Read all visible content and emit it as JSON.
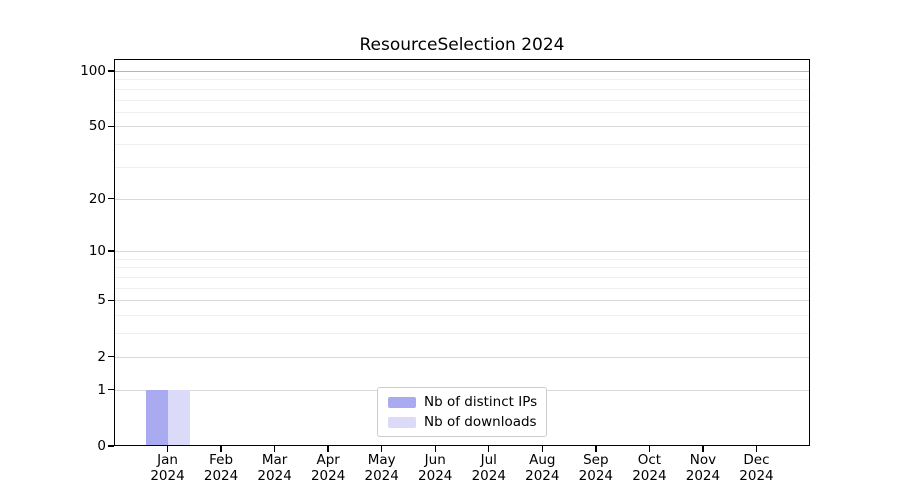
{
  "chart_data": {
    "type": "bar",
    "title": "ResourceSelection 2024",
    "categories": [
      {
        "month": "Jan",
        "year": "2024"
      },
      {
        "month": "Feb",
        "year": "2024"
      },
      {
        "month": "Mar",
        "year": "2024"
      },
      {
        "month": "Apr",
        "year": "2024"
      },
      {
        "month": "May",
        "year": "2024"
      },
      {
        "month": "Jun",
        "year": "2024"
      },
      {
        "month": "Jul",
        "year": "2024"
      },
      {
        "month": "Aug",
        "year": "2024"
      },
      {
        "month": "Sep",
        "year": "2024"
      },
      {
        "month": "Oct",
        "year": "2024"
      },
      {
        "month": "Nov",
        "year": "2024"
      },
      {
        "month": "Dec",
        "year": "2024"
      }
    ],
    "series": [
      {
        "name": "Nb of distinct IPs",
        "color": "#aaaaf0",
        "values": [
          1,
          0,
          0,
          0,
          0,
          0,
          0,
          0,
          0,
          0,
          0,
          0
        ]
      },
      {
        "name": "Nb of downloads",
        "color": "#dbdbf9",
        "values": [
          1,
          0,
          0,
          0,
          0,
          0,
          0,
          0,
          0,
          0,
          0,
          0
        ]
      }
    ],
    "xlabel": "",
    "ylabel": "",
    "yscale": "log1p",
    "ylim": [
      0,
      116
    ],
    "yticks": [
      0,
      1,
      2,
      5,
      10,
      20,
      50,
      100
    ],
    "yticks_minor": [
      3,
      4,
      6,
      7,
      8,
      9,
      30,
      40,
      60,
      70,
      80,
      90
    ],
    "grid": {
      "major_color": "#d9d9d9",
      "minor_color": "#efefef",
      "top_major_color": "#b5b5b5"
    },
    "legend": {
      "position": "lower center"
    }
  }
}
